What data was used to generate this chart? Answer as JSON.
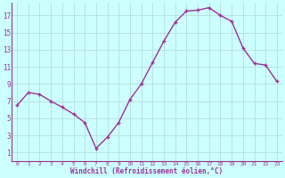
{
  "x": [
    0,
    1,
    2,
    3,
    4,
    5,
    6,
    7,
    8,
    9,
    10,
    11,
    12,
    13,
    14,
    15,
    16,
    17,
    18,
    19,
    20,
    21,
    22,
    23
  ],
  "y": [
    6.5,
    8.0,
    7.8,
    7.0,
    6.3,
    5.5,
    4.5,
    1.5,
    2.8,
    4.5,
    7.2,
    9.0,
    11.5,
    14.0,
    16.2,
    17.5,
    17.6,
    17.9,
    17.0,
    16.3,
    13.2,
    11.4,
    11.2,
    9.3
  ],
  "line_color": "#993399",
  "marker": "+",
  "markersize": 3.5,
  "linewidth": 1.0,
  "bg_color": "#ccffff",
  "grid_color": "#b0d8d8",
  "xlabel": "Windchill (Refroidissement éolien,°C)",
  "xlabel_color": "#993399",
  "tick_color": "#993399",
  "yticks": [
    1,
    3,
    5,
    7,
    9,
    11,
    13,
    15,
    17
  ],
  "xticks": [
    0,
    1,
    2,
    3,
    4,
    5,
    6,
    7,
    8,
    9,
    10,
    11,
    12,
    13,
    14,
    15,
    16,
    17,
    18,
    19,
    20,
    21,
    22,
    23
  ],
  "ylim": [
    0.0,
    18.5
  ],
  "xlim": [
    -0.5,
    23.5
  ],
  "spine_color": "#993399"
}
